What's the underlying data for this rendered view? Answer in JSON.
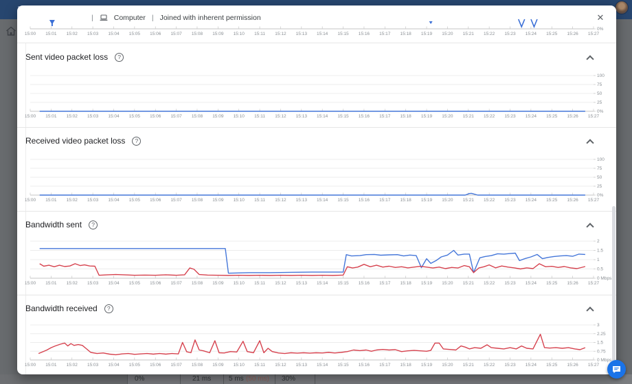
{
  "topbar": {
    "color": "#27466f"
  },
  "modal_header": {
    "separator": "|",
    "device_label": "Computer",
    "permission_label": "Joined with inherent permission",
    "close_icon": "✕"
  },
  "icons": {
    "help": "?"
  },
  "background_row": {
    "cells": [
      "0%",
      "21 ms",
      "5 ms",
      "30%"
    ],
    "threshold_suffix": "(50 ms)"
  },
  "colors": {
    "line_blue": "#4476d9",
    "line_red": "#d6424e",
    "marker_blue": "#3b6fd6",
    "fab_blue": "#1a73e8"
  },
  "chart_data": [
    {
      "id": "timeline",
      "type": "line",
      "title": "",
      "x_labels": [
        "15:00",
        "15:01",
        "15:02",
        "15:03",
        "15:04",
        "15:05",
        "15:06",
        "15:07",
        "15:08",
        "15:09",
        "15:10",
        "15:11",
        "15:12",
        "15:13",
        "15:14",
        "15:15",
        "15:16",
        "15:17",
        "15:18",
        "15:19",
        "15:20",
        "15:21",
        "15:22",
        "15:23",
        "15:24",
        "15:25",
        "15:26",
        "15:27"
      ],
      "y_ticks": [
        "0%"
      ],
      "series": [],
      "markers": [
        {
          "type": "filter",
          "x_min": 1.05
        },
        {
          "type": "triangle",
          "x_min": 19.2
        },
        {
          "type": "v",
          "x_min": 23.55
        },
        {
          "type": "v",
          "x_min": 24.15
        }
      ]
    },
    {
      "id": "sent_video_packet_loss",
      "type": "line",
      "title": "Sent video packet loss",
      "ylabel": "%",
      "ylim": [
        0,
        100
      ],
      "y_ticks": [
        "100",
        "75",
        "50",
        "25",
        "0%"
      ],
      "series": [
        {
          "name": "sent-loss",
          "color": "#4476d9",
          "points": [
            [
              0.45,
              0
            ],
            [
              26.6,
              0
            ]
          ]
        }
      ]
    },
    {
      "id": "received_video_packet_loss",
      "type": "line",
      "title": "Received video packet loss",
      "ylabel": "%",
      "ylim": [
        0,
        100
      ],
      "y_ticks": [
        "100",
        "75",
        "50",
        "25",
        "0%"
      ],
      "series": [
        {
          "name": "received-loss",
          "color": "#4476d9",
          "points": [
            [
              0.45,
              0
            ],
            [
              20.85,
              0
            ],
            [
              21.05,
              4.5
            ],
            [
              21.15,
              5
            ],
            [
              21.45,
              0
            ],
            [
              26.6,
              0
            ]
          ]
        }
      ]
    },
    {
      "id": "bandwidth_sent",
      "type": "line",
      "title": "Bandwidth sent",
      "ylabel": "Mbps",
      "ylim": [
        0,
        2
      ],
      "y_ticks": [
        "2",
        "1.5",
        "1",
        "0.5",
        "0 Mbps"
      ],
      "series": [
        {
          "name": "sent-blue",
          "color": "#4476d9",
          "points": [
            [
              0.45,
              1.6
            ],
            [
              9.35,
              1.6
            ],
            [
              9.5,
              0.27
            ],
            [
              10.5,
              0.3
            ],
            [
              11.5,
              0.3
            ],
            [
              12.5,
              0.32
            ],
            [
              13.5,
              0.33
            ],
            [
              15.0,
              0.33
            ],
            [
              15.15,
              1.27
            ],
            [
              15.4,
              1.2
            ],
            [
              15.8,
              1.22
            ],
            [
              16.1,
              1.27
            ],
            [
              16.5,
              1.28
            ],
            [
              16.8,
              1.24
            ],
            [
              17.2,
              1.26
            ],
            [
              17.6,
              1.27
            ],
            [
              17.9,
              1.2
            ],
            [
              18.2,
              1.25
            ],
            [
              18.5,
              1.22
            ],
            [
              18.75,
              0.57
            ],
            [
              19.0,
              1.05
            ],
            [
              19.2,
              0.8
            ],
            [
              19.45,
              0.95
            ],
            [
              19.7,
              1.15
            ],
            [
              20.0,
              1.25
            ],
            [
              20.3,
              1.5
            ],
            [
              20.5,
              1.25
            ],
            [
              20.8,
              1.3
            ],
            [
              21.05,
              1.3
            ],
            [
              21.25,
              0.3
            ],
            [
              21.55,
              1.1
            ],
            [
              21.8,
              1.17
            ],
            [
              22.1,
              1.22
            ],
            [
              22.4,
              1.32
            ],
            [
              22.7,
              1.3
            ],
            [
              23.0,
              1.33
            ],
            [
              23.25,
              1.35
            ],
            [
              23.45,
              0.95
            ],
            [
              23.7,
              1.05
            ],
            [
              24.0,
              1.15
            ],
            [
              24.3,
              1.28
            ],
            [
              24.55,
              1.05
            ],
            [
              24.8,
              1.12
            ],
            [
              25.1,
              1.17
            ],
            [
              25.4,
              1.2
            ],
            [
              25.7,
              1.22
            ],
            [
              26.0,
              1.18
            ],
            [
              26.3,
              1.3
            ],
            [
              26.6,
              1.28
            ]
          ]
        },
        {
          "name": "sent-red",
          "color": "#d6424e",
          "points": [
            [
              0.45,
              0.78
            ],
            [
              0.65,
              0.65
            ],
            [
              0.9,
              0.7
            ],
            [
              1.15,
              0.62
            ],
            [
              1.4,
              0.7
            ],
            [
              1.65,
              0.63
            ],
            [
              1.9,
              0.66
            ],
            [
              2.15,
              0.78
            ],
            [
              2.4,
              0.68
            ],
            [
              2.6,
              0.72
            ],
            [
              2.85,
              0.66
            ],
            [
              3.1,
              0.65
            ],
            [
              3.3,
              0.16
            ],
            [
              3.7,
              0.18
            ],
            [
              4.1,
              0.2
            ],
            [
              4.5,
              0.18
            ],
            [
              5.0,
              0.16
            ],
            [
              5.5,
              0.17
            ],
            [
              6.0,
              0.16
            ],
            [
              6.5,
              0.18
            ],
            [
              7.0,
              0.16
            ],
            [
              7.4,
              0.18
            ],
            [
              7.65,
              0.55
            ],
            [
              7.85,
              0.48
            ],
            [
              8.1,
              0.2
            ],
            [
              8.5,
              0.17
            ],
            [
              9.0,
              0.16
            ],
            [
              9.5,
              0.15
            ],
            [
              10.0,
              0.16
            ],
            [
              10.5,
              0.15
            ],
            [
              11.0,
              0.16
            ],
            [
              11.5,
              0.15
            ],
            [
              12.0,
              0.16
            ],
            [
              12.5,
              0.15
            ],
            [
              13.0,
              0.16
            ],
            [
              13.5,
              0.15
            ],
            [
              14.0,
              0.16
            ],
            [
              14.5,
              0.15
            ],
            [
              15.0,
              0.17
            ],
            [
              15.2,
              0.62
            ],
            [
              15.45,
              0.55
            ],
            [
              15.7,
              0.6
            ],
            [
              16.0,
              0.75
            ],
            [
              16.3,
              0.62
            ],
            [
              16.6,
              0.7
            ],
            [
              16.9,
              0.6
            ],
            [
              17.2,
              0.65
            ],
            [
              17.5,
              0.58
            ],
            [
              17.8,
              0.62
            ],
            [
              18.1,
              0.56
            ],
            [
              18.4,
              0.6
            ],
            [
              18.7,
              0.64
            ],
            [
              19.0,
              0.6
            ],
            [
              19.3,
              0.55
            ],
            [
              19.6,
              0.6
            ],
            [
              19.9,
              0.52
            ],
            [
              20.2,
              0.58
            ],
            [
              20.5,
              0.55
            ],
            [
              20.8,
              0.68
            ],
            [
              21.05,
              0.62
            ],
            [
              21.25,
              0.3
            ],
            [
              21.5,
              0.55
            ],
            [
              21.75,
              0.62
            ],
            [
              22.0,
              0.72
            ],
            [
              22.3,
              0.56
            ],
            [
              22.6,
              0.66
            ],
            [
              22.9,
              0.6
            ],
            [
              23.2,
              0.56
            ],
            [
              23.5,
              0.5
            ],
            [
              23.8,
              0.56
            ],
            [
              24.1,
              0.52
            ],
            [
              24.4,
              0.78
            ],
            [
              24.7,
              0.62
            ],
            [
              25.0,
              0.64
            ],
            [
              25.3,
              0.58
            ],
            [
              25.6,
              0.63
            ],
            [
              25.9,
              0.56
            ],
            [
              26.2,
              0.52
            ],
            [
              26.6,
              0.63
            ]
          ]
        }
      ]
    },
    {
      "id": "bandwidth_received",
      "type": "line",
      "title": "Bandwidth received",
      "ylabel": "Mbps",
      "ylim": [
        0,
        3
      ],
      "y_ticks": [
        "3",
        "2.25",
        "1.5",
        "0.75",
        "0 Mbps"
      ],
      "series": [
        {
          "name": "received-red",
          "color": "#d6424e",
          "points": [
            [
              0.4,
              0.55
            ],
            [
              0.6,
              0.7
            ],
            [
              0.8,
              0.85
            ],
            [
              1.0,
              1.05
            ],
            [
              1.2,
              1.2
            ],
            [
              1.45,
              1.35
            ],
            [
              1.65,
              1.45
            ],
            [
              1.8,
              1.2
            ],
            [
              1.95,
              1.4
            ],
            [
              2.1,
              1.25
            ],
            [
              2.3,
              1.32
            ],
            [
              2.5,
              1.25
            ],
            [
              2.7,
              0.95
            ],
            [
              2.9,
              0.65
            ],
            [
              3.2,
              0.55
            ],
            [
              3.5,
              0.6
            ],
            [
              3.8,
              0.5
            ],
            [
              4.1,
              0.45
            ],
            [
              4.4,
              0.52
            ],
            [
              4.7,
              0.55
            ],
            [
              5.0,
              0.48
            ],
            [
              5.3,
              0.52
            ],
            [
              5.6,
              0.55
            ],
            [
              5.9,
              0.5
            ],
            [
              6.2,
              0.55
            ],
            [
              6.5,
              0.5
            ],
            [
              6.8,
              0.55
            ],
            [
              7.1,
              0.52
            ],
            [
              7.3,
              1.5
            ],
            [
              7.5,
              0.7
            ],
            [
              7.7,
              0.62
            ],
            [
              7.9,
              1.72
            ],
            [
              8.1,
              0.85
            ],
            [
              8.3,
              0.78
            ],
            [
              8.6,
              0.62
            ],
            [
              8.85,
              1.65
            ],
            [
              9.05,
              0.62
            ],
            [
              9.3,
              0.6
            ],
            [
              9.6,
              0.72
            ],
            [
              9.9,
              0.68
            ],
            [
              10.2,
              1.6
            ],
            [
              10.4,
              0.72
            ],
            [
              10.7,
              0.62
            ],
            [
              11.0,
              1.65
            ],
            [
              11.2,
              0.62
            ],
            [
              11.4,
              1.0
            ],
            [
              11.6,
              0.72
            ],
            [
              11.9,
              0.6
            ],
            [
              12.2,
              0.55
            ],
            [
              12.5,
              0.62
            ],
            [
              12.8,
              0.58
            ],
            [
              13.1,
              0.62
            ],
            [
              13.4,
              0.58
            ],
            [
              13.7,
              0.62
            ],
            [
              14.0,
              0.6
            ],
            [
              14.3,
              0.65
            ],
            [
              14.6,
              0.6
            ],
            [
              14.9,
              0.65
            ],
            [
              15.2,
              0.72
            ],
            [
              15.5,
              0.85
            ],
            [
              15.8,
              0.8
            ],
            [
              16.1,
              0.85
            ],
            [
              16.35,
              0.75
            ],
            [
              16.6,
              0.85
            ],
            [
              16.9,
              0.9
            ],
            [
              17.2,
              0.85
            ],
            [
              17.5,
              0.88
            ],
            [
              17.8,
              0.72
            ],
            [
              18.1,
              0.78
            ],
            [
              18.4,
              0.82
            ],
            [
              18.7,
              0.78
            ],
            [
              19.0,
              0.75
            ],
            [
              19.2,
              0.82
            ],
            [
              19.4,
              1.45
            ],
            [
              19.6,
              1.45
            ],
            [
              19.8,
              0.95
            ],
            [
              20.1,
              0.9
            ],
            [
              20.4,
              0.85
            ],
            [
              20.65,
              1.2
            ],
            [
              20.85,
              1.1
            ],
            [
              21.05,
              0.95
            ],
            [
              21.3,
              1.05
            ],
            [
              21.6,
              1.0
            ],
            [
              21.9,
              1.3
            ],
            [
              22.1,
              1.05
            ],
            [
              22.4,
              1.0
            ],
            [
              22.7,
              0.95
            ],
            [
              23.0,
              1.05
            ],
            [
              23.3,
              0.95
            ],
            [
              23.55,
              1.2
            ],
            [
              23.8,
              1.0
            ],
            [
              24.1,
              0.95
            ],
            [
              24.45,
              2.2
            ],
            [
              24.65,
              1.05
            ],
            [
              24.9,
              1.02
            ],
            [
              25.2,
              1.05
            ],
            [
              25.5,
              1.0
            ],
            [
              25.8,
              1.05
            ],
            [
              26.1,
              0.95
            ],
            [
              26.35,
              0.88
            ],
            [
              26.6,
              1.05
            ]
          ]
        }
      ]
    }
  ]
}
